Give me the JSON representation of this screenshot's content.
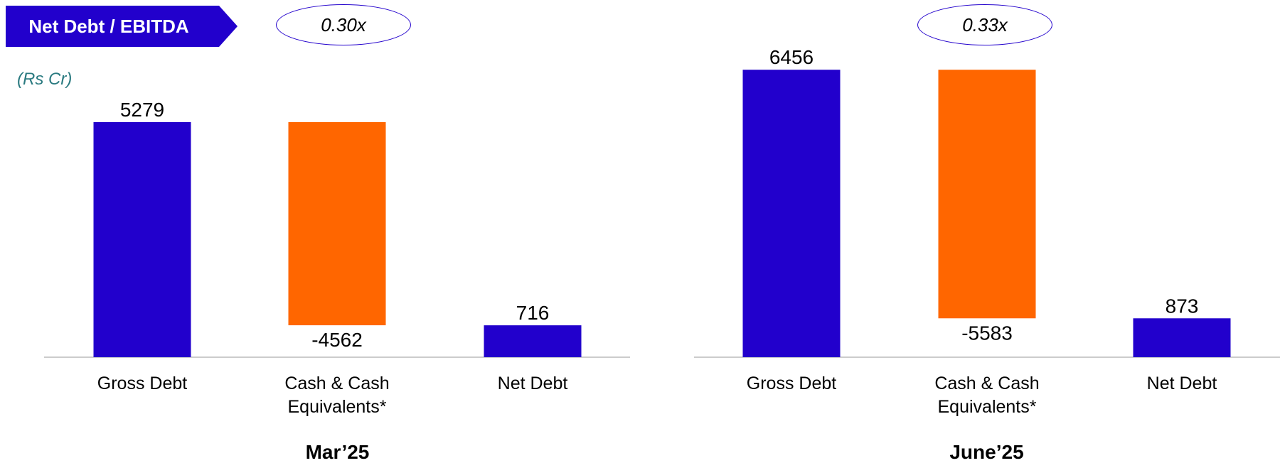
{
  "header": {
    "title": "Net Debt / EBITDA",
    "ratios": [
      "0.30x",
      "0.33x"
    ]
  },
  "unit_label": "(Rs Cr)",
  "colors": {
    "debt": "#2200cc",
    "cash": "#ff6600",
    "axis": "#cccccc",
    "banner": "#2200cc"
  },
  "chart_data": [
    {
      "type": "bar",
      "title": "Mar’25",
      "categories": [
        "Gross Debt",
        "Cash & Cash Equivalents*",
        "Net Debt"
      ],
      "category_lines": [
        [
          "Gross Debt"
        ],
        [
          "Cash & Cash",
          "Equivalents*"
        ],
        [
          "Net Debt"
        ]
      ],
      "values": [
        5279,
        -4562,
        716
      ],
      "data_labels": [
        "5279",
        "-4562",
        "716"
      ],
      "bar_colors": [
        "debt",
        "cash",
        "debt"
      ],
      "chart_form": "waterfall",
      "ratio": "0.30x"
    },
    {
      "type": "bar",
      "title": "June’25",
      "categories": [
        "Gross Debt",
        "Cash & Cash Equivalents*",
        "Net Debt"
      ],
      "category_lines": [
        [
          "Gross Debt"
        ],
        [
          "Cash & Cash",
          "Equivalents*"
        ],
        [
          "Net Debt"
        ]
      ],
      "values": [
        6456,
        -5583,
        873
      ],
      "data_labels": [
        "6456",
        "-5583",
        "873"
      ],
      "bar_colors": [
        "debt",
        "cash",
        "debt"
      ],
      "chart_form": "waterfall",
      "ratio": "0.33x"
    }
  ]
}
